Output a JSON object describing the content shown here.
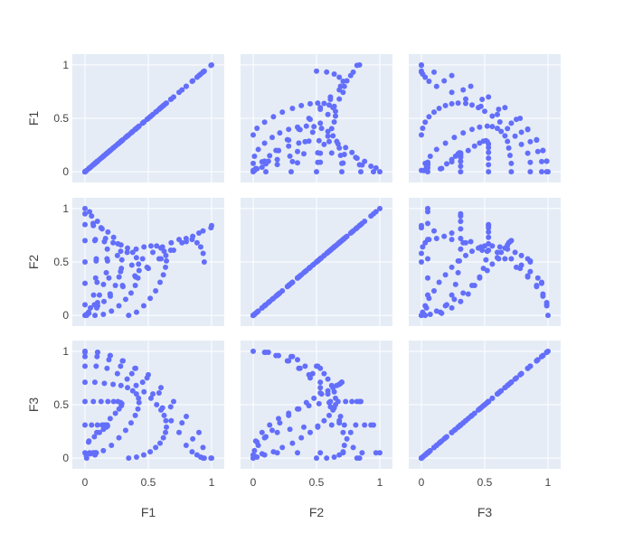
{
  "chart_data": {
    "type": "scatter",
    "kind": "scatter-matrix",
    "dimensions": [
      "F1",
      "F2",
      "F3"
    ],
    "axis_ticks": [
      {
        "value": 0,
        "label": "0"
      },
      {
        "value": 0.5,
        "label": "0.5"
      },
      {
        "value": 1,
        "label": "1"
      }
    ],
    "axis_range": [
      -0.1,
      1.1
    ],
    "grid": true,
    "colors": {
      "plot_background": "#E5ECF6",
      "grid": "#ffffff",
      "marker": "#636EFA",
      "text": "#444444"
    },
    "points": {
      "F1": [
        0,
        0.1,
        0.2,
        0.3,
        0.4,
        0.5,
        0.6,
        0.7,
        0.8,
        0.9,
        1,
        0,
        0.099,
        0.198,
        0.296,
        0.394,
        0.49,
        0.585,
        0.677,
        0.766,
        0.851,
        0.932,
        0.995,
        0,
        0.095,
        0.189,
        0.281,
        0.37,
        0.455,
        0.536,
        0.612,
        0.681,
        0.743,
        0.799,
        0.846,
        0.885,
        0.914,
        0.933,
        0.942,
        0,
        0.088,
        0.174,
        0.256,
        0.333,
        0.404,
        0.466,
        0.521,
        0.566,
        0.6,
        0.625,
        0.639,
        0.643,
        0.636,
        0.619,
        0.593,
        0.558,
        0.515,
        0.464,
        0.407,
        0.345,
        0,
        0.078,
        0.153,
        0.222,
        0.284,
        0.336,
        0.377,
        0.406,
        0.423,
        0.427,
        0.418,
        0.397,
        0.364,
        0.321,
        0.268,
        0.209,
        0.145,
        0.079,
        0.013,
        0,
        0.066,
        0.127,
        0.181,
        0.226,
        0.26,
        0.282,
        0.291,
        0.287,
        0.269,
        0.24,
        0.199,
        0.15,
        0.093,
        0.031,
        0,
        0.052,
        0.098,
        0.135,
        0.162,
        0.176,
        0.178,
        0.168,
        0.146,
        0.114,
        0.074,
        0.028,
        0,
        0.036,
        0.064,
        0.082,
        0.089,
        0.084,
        0.068,
        0.043,
        0.011
      ],
      "F2": [
        0,
        0.09,
        0.18,
        0.27,
        0.36,
        0.44,
        0.53,
        0.61,
        0.69,
        0.77,
        0.84,
        0.1,
        0.12,
        0.2,
        0.28,
        0.37,
        0.45,
        0.53,
        0.61,
        0.68,
        0.74,
        0.79,
        0.82,
        0.3,
        0.31,
        0.35,
        0.41,
        0.47,
        0.53,
        0.59,
        0.64,
        0.68,
        0.71,
        0.72,
        0.71,
        0.68,
        0.64,
        0.58,
        0.5,
        0.5,
        0.51,
        0.53,
        0.56,
        0.59,
        0.62,
        0.64,
        0.65,
        0.65,
        0.63,
        0.6,
        0.56,
        0.51,
        0.45,
        0.38,
        0.31,
        0.23,
        0.16,
        0.09,
        0.03,
        0,
        0.7,
        0.7,
        0.69,
        0.68,
        0.66,
        0.63,
        0.59,
        0.54,
        0.48,
        0.42,
        0.35,
        0.28,
        0.21,
        0.15,
        0.09,
        0.04,
        0.01,
        0,
        0,
        0.85,
        0.84,
        0.82,
        0.78,
        0.73,
        0.67,
        0.6,
        0.52,
        0.44,
        0.36,
        0.28,
        0.2,
        0.13,
        0.07,
        0.02,
        0.95,
        0.93,
        0.88,
        0.81,
        0.72,
        0.62,
        0.51,
        0.4,
        0.29,
        0.19,
        0.1,
        0.03,
        1,
        0.97,
        0.86,
        0.71,
        0.53,
        0.35,
        0.19,
        0.07,
        0.01
      ],
      "F3": [
        1,
        0.99,
        0.96,
        0.91,
        0.84,
        0.78,
        0.66,
        0.53,
        0.39,
        0.24,
        0,
        0.99,
        0.99,
        0.96,
        0.91,
        0.84,
        0.75,
        0.61,
        0.48,
        0.33,
        0.18,
        0.1,
        0,
        0.95,
        0.95,
        0.92,
        0.86,
        0.79,
        0.71,
        0.6,
        0.47,
        0.35,
        0.24,
        0.12,
        0.06,
        0.03,
        0.01,
        0,
        0,
        0.86,
        0.86,
        0.84,
        0.79,
        0.74,
        0.68,
        0.62,
        0.56,
        0.5,
        0.45,
        0.4,
        0.35,
        0.29,
        0.24,
        0.19,
        0.14,
        0.1,
        0.06,
        0.03,
        0.01,
        0,
        0.71,
        0.71,
        0.7,
        0.69,
        0.68,
        0.66,
        0.63,
        0.6,
        0.56,
        0.52,
        0.46,
        0.4,
        0.33,
        0.26,
        0.19,
        0.12,
        0.07,
        0.03,
        0,
        0.53,
        0.53,
        0.53,
        0.53,
        0.53,
        0.53,
        0.52,
        0.51,
        0.49,
        0.46,
        0.42,
        0.37,
        0.31,
        0.24,
        0.16,
        0.31,
        0.31,
        0.31,
        0.31,
        0.31,
        0.31,
        0.3,
        0.29,
        0.27,
        0.24,
        0.2,
        0.15,
        0.05,
        0.05,
        0.05,
        0.05,
        0.05,
        0.05,
        0.05,
        0.04,
        0.02
      ]
    }
  }
}
